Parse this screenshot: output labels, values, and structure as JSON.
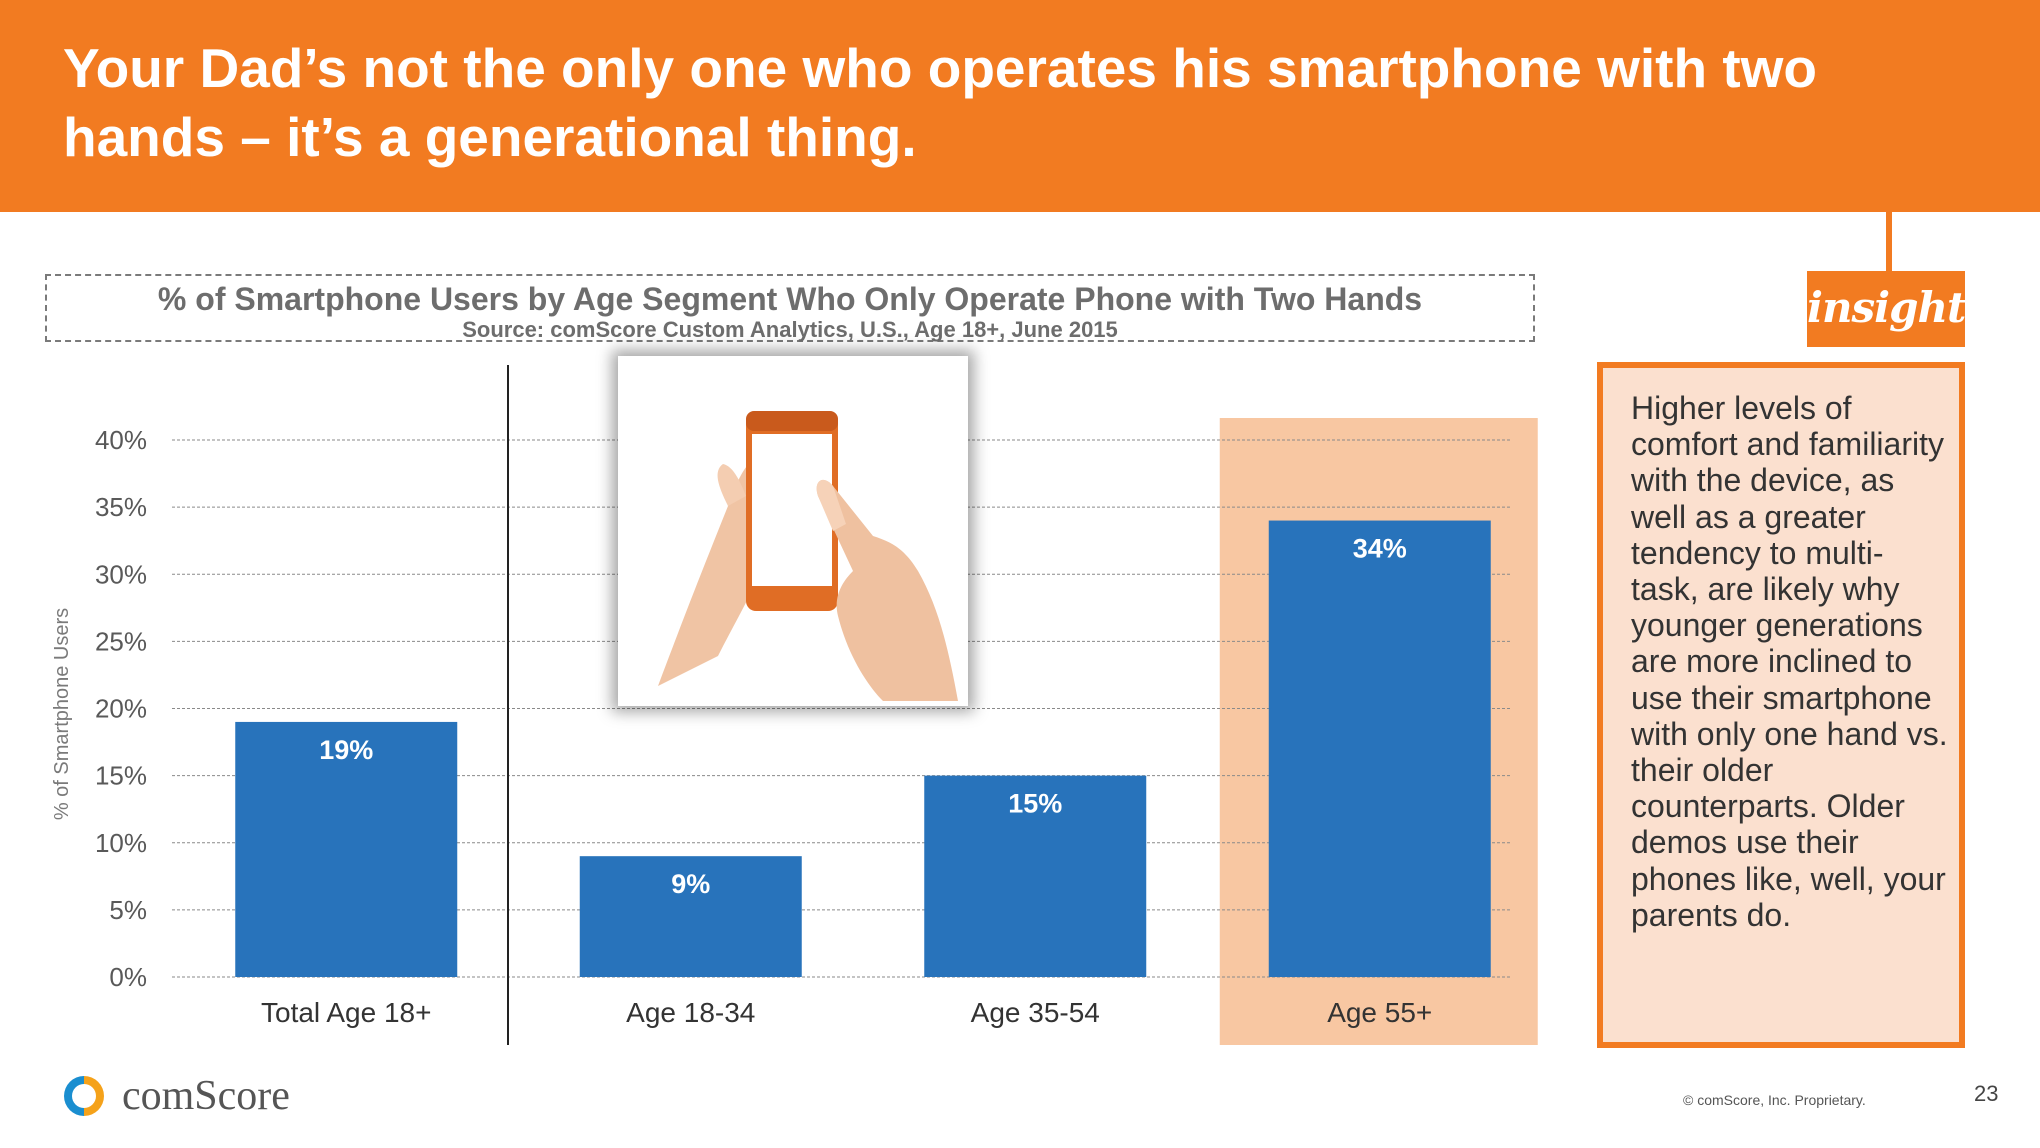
{
  "slide": {
    "title": "Your Dad’s not the only one who operates his smartphone with two hands – it’s a generational thing.",
    "page_number": "23",
    "copyright": "© comScore, Inc. Proprietary.",
    "logo_text": "comScore"
  },
  "insight": {
    "badge": "insight",
    "text": "Higher levels of comfort and familiarity with the device, as well as a greater tendency to multi-task, are likely why younger generations are more inclined to use their smartphone with only one hand vs. their older counterparts. Older demos use their phones like, well, your parents do."
  },
  "chart_data": {
    "type": "bar",
    "title": "% of Smartphone Users by Age Segment Who Only Operate Phone with Two Hands",
    "subtitle": "Source: comScore Custom Analytics, U.S., Age 18+, June 2015",
    "ylabel": "% of Smartphone Users",
    "xlabel": "",
    "categories": [
      "Total Age 18+",
      "Age 18-34",
      "Age 35-54",
      "Age 55+"
    ],
    "values": [
      19,
      9,
      15,
      34
    ],
    "data_labels": [
      "19%",
      "9%",
      "15%",
      "34%"
    ],
    "ylim": [
      0,
      40
    ],
    "yticks": [
      0,
      5,
      10,
      15,
      20,
      25,
      30,
      35,
      40
    ],
    "ytick_labels": [
      "0%",
      "5%",
      "10%",
      "15%",
      "20%",
      "25%",
      "30%",
      "35%",
      "40%"
    ],
    "grid": true,
    "highlight_category": "Age 55+",
    "colors": {
      "bar": "#2873bb",
      "highlight_band": "#f8c7a2",
      "accent": "#f27b21",
      "gridline": "#8a8a8a"
    }
  }
}
